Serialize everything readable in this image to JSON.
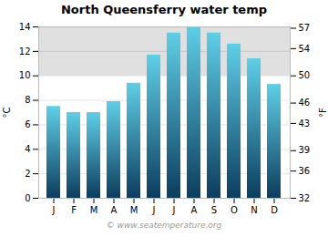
{
  "chart_data": {
    "type": "bar",
    "title": "North Queensferry water temp",
    "categories": [
      "J",
      "F",
      "M",
      "A",
      "M",
      "J",
      "J",
      "A",
      "S",
      "O",
      "N",
      "D"
    ],
    "values": [
      7.5,
      7.0,
      7.0,
      7.9,
      9.4,
      11.7,
      13.5,
      14.0,
      13.5,
      12.6,
      11.4,
      9.3
    ],
    "gradient": {
      "bottom": "#0b3d5e",
      "top": "#5ecfe8"
    },
    "ylabel": "°C",
    "ylim": [
      0,
      14
    ],
    "yticks": [
      0,
      2,
      4,
      6,
      8,
      10,
      12,
      14
    ],
    "y2label": "°F",
    "y2lim": [
      32,
      57.2
    ],
    "y2ticks": [
      32,
      36,
      39,
      43,
      46,
      50,
      54,
      57
    ],
    "bands": [
      {
        "y1": 10.0,
        "y2": 14.0,
        "color": "#e0e0e0"
      }
    ],
    "caption": "© www.seatemperature.org",
    "grid": true
  }
}
